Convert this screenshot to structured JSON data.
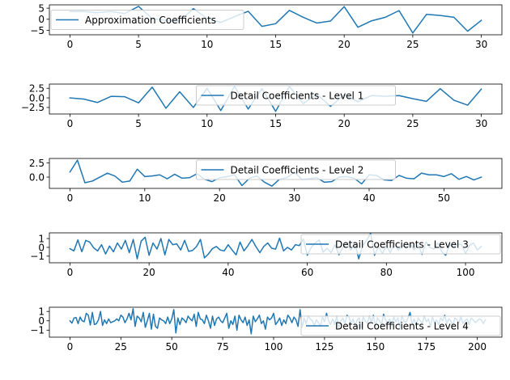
{
  "chart_data": [
    {
      "type": "line",
      "series": [
        {
          "name": "Approximation Coefficients",
          "color": "#1f77b4",
          "values": [
            3.5,
            3.5,
            3.0,
            3.5,
            2.6,
            5.8,
            0.3,
            -0.5,
            -0.9,
            4.8,
            0.3,
            -1.4,
            1.2,
            3.6,
            -3.2,
            -2.0,
            4.0,
            0.9,
            -1.7,
            -0.8,
            5.7,
            -3.6,
            -0.7,
            0.9,
            3.9,
            -6.2,
            2.2,
            1.7,
            0.9,
            -5.4,
            -0.5
          ]
        }
      ],
      "xlim": [
        -1.5,
        31.5
      ],
      "ylim": [
        -7.0,
        6.5
      ],
      "xticks": [
        0,
        5,
        10,
        15,
        20,
        25,
        30
      ],
      "yticks": [
        -5,
        0,
        5
      ],
      "legend_loc": "middle-left",
      "grid": false
    },
    {
      "type": "line",
      "series": [
        {
          "name": "Detail Coefficients - Level 1",
          "color": "#1f77b4",
          "values": [
            0.0,
            -0.3,
            -1.2,
            0.4,
            0.3,
            -1.3,
            2.8,
            -2.7,
            1.6,
            -2.5,
            2.5,
            -3.3,
            3.0,
            -2.9,
            2.4,
            -3.5,
            3.0,
            -1.5,
            1.0,
            -2.2,
            0.8,
            -1.0,
            0.6,
            0.4,
            0.6,
            -0.2,
            -0.9,
            2.4,
            -0.6,
            -1.9,
            2.3
          ]
        }
      ],
      "xlim": [
        -1.5,
        31.5
      ],
      "ylim": [
        -4.2,
        3.6
      ],
      "xticks": [
        0,
        5,
        10,
        15,
        20,
        25,
        30
      ],
      "yticks": [
        -2.5,
        0.0,
        2.5
      ],
      "legend_loc": "upper-center",
      "grid": false
    },
    {
      "type": "line",
      "series": [
        {
          "name": "Detail Coefficients - Level 2",
          "color": "#1f77b4",
          "values": [
            0.9,
            3.0,
            -1.0,
            -0.7,
            0.0,
            0.7,
            0.2,
            -0.9,
            -0.7,
            1.4,
            0.1,
            0.2,
            0.4,
            -0.3,
            0.5,
            -0.2,
            -0.1,
            0.6,
            -0.4,
            -0.8,
            -0.1,
            0.1,
            0.4,
            -1.5,
            -0.2,
            0.2,
            -0.9,
            -1.6,
            -0.4,
            -0.1,
            0.9,
            -0.4,
            -0.3,
            -0.1,
            -0.9,
            -0.8,
            0.0,
            0.1,
            -0.2,
            -1.2,
            0.4,
            0.3,
            -0.5,
            -0.6,
            0.3,
            -0.2,
            -0.3,
            0.7,
            0.4,
            0.4,
            0.1,
            0.6,
            -0.4,
            0.1,
            -0.5,
            0.0
          ]
        }
      ],
      "xlim": [
        -2.75,
        57.75
      ],
      "ylim": [
        -2.0,
        3.3
      ],
      "xticks": [
        0,
        10,
        20,
        30,
        40,
        50
      ],
      "yticks": [
        0.0,
        2.5
      ],
      "legend_loc": "upper-center",
      "grid": false
    },
    {
      "type": "line",
      "series": [
        {
          "name": "Detail Coefficients - Level 3",
          "color": "#1f77b4",
          "values": [
            -0.15,
            -0.4,
            0.85,
            -0.5,
            0.8,
            0.6,
            -0.05,
            -0.4,
            0.3,
            -0.75,
            0.15,
            -0.5,
            0.5,
            -0.2,
            0.8,
            -0.6,
            0.9,
            -1.3,
            0.7,
            1.15,
            -0.9,
            0.5,
            -0.2,
            1.0,
            -0.85,
            0.9,
            0.3,
            0.4,
            -0.3,
            0.8,
            -0.45,
            -0.35,
            0.1,
            0.9,
            -1.2,
            -0.75,
            -0.15,
            0.1,
            -0.3,
            -0.4,
            0.3,
            -0.3,
            -0.85,
            0.6,
            -0.4,
            0.2,
            0.9,
            0.1,
            -0.6,
            0.1,
            0.5,
            -0.1,
            -0.2,
            1.05,
            -0.4,
            0.0,
            -0.3,
            0.3,
            0.2,
            0.95,
            -0.9,
            0.0,
            0.5,
            0.85,
            -0.55,
            -0.1,
            -0.6,
            0.3,
            -0.85,
            0.0,
            0.5,
            -0.3,
            0.6,
            -1.3,
            0.2,
            0.8,
            1.6,
            -0.9,
            0.1,
            -0.7,
            0.2,
            -0.6,
            0.5,
            -0.3,
            0.2,
            -0.1,
            0.4,
            -0.3,
            0.3,
            -0.8,
            0.6,
            0.0,
            -0.2,
            0.5,
            -0.5,
            -0.9,
            0.3,
            0.0,
            0.4,
            0.3,
            -0.7,
            0.2,
            0.5,
            -0.3,
            0.1
          ]
        }
      ],
      "xlim": [
        -5.2,
        109.2
      ],
      "ylim": [
        -1.75,
        1.65
      ],
      "xticks": [
        0,
        20,
        40,
        60,
        80,
        100
      ],
      "yticks": [
        -1,
        0,
        1
      ],
      "legend_loc": "upper-right",
      "grid": false
    },
    {
      "type": "line",
      "series": [
        {
          "name": "Detail Coefficients - Level 4",
          "color": "#1f77b4",
          "values": [
            0.0,
            -0.25,
            0.3,
            0.35,
            -0.3,
            0.4,
            0.0,
            -0.1,
            0.8,
            0.6,
            -0.45,
            0.9,
            -0.4,
            -0.3,
            0.1,
            1.0,
            -0.5,
            0.1,
            -0.3,
            0.2,
            -0.2,
            -0.1,
            0.0,
            0.2,
            0.0,
            0.6,
            0.4,
            -0.2,
            0.2,
            0.8,
            0.1,
            1.3,
            -0.6,
            0.5,
            0.3,
            -0.1,
            0.9,
            -0.7,
            0.0,
            0.8,
            -0.9,
            0.7,
            -0.6,
            -0.8,
            0.3,
            0.1,
            0.0,
            -0.3,
            0.4,
            -0.3,
            0.2,
            1.2,
            -1.3,
            0.3,
            -0.4,
            0.3,
            0.1,
            -0.2,
            0.5,
            0.2,
            0.0,
            0.7,
            -0.6,
            0.9,
            0.2,
            0.1,
            -0.3,
            0.6,
            0.0,
            -0.8,
            0.5,
            -0.5,
            0.2,
            0.4,
            0.0,
            -0.2,
            0.3,
            0.8,
            -0.8,
            0.0,
            -0.4,
            0.5,
            -1.0,
            0.6,
            0.1,
            -0.2,
            0.4,
            -0.5,
            0.1,
            -1.4,
            0.5,
            -0.1,
            0.2,
            0.6,
            -0.3,
            0.0,
            -0.9,
            0.4,
            0.1,
            0.3,
            0.8,
            -0.4,
            -0.1,
            0.3,
            -0.5,
            0.1,
            -0.3,
            0.6,
            0.3,
            -0.2,
            0.4,
            0.1,
            -0.6,
            1.2,
            -0.7,
            0.3,
            -0.3,
            0.5,
            0.2,
            0.0,
            -0.5,
            0.1,
            -0.2,
            -0.6,
            0.4,
            -0.1,
            0.8,
            0.0,
            -0.4,
            0.2,
            -0.4,
            0.5,
            -0.8,
            0.0,
            0.3,
            -0.3,
            0.6,
            0.4,
            -0.3,
            0.2,
            -0.6,
            0.1,
            0.3,
            -0.8,
            0.4,
            0.0,
            -0.3,
            0.5,
            -0.2,
            0.6,
            -0.6,
            0.3,
            0.0,
            -0.4,
            0.7,
            0.1,
            -0.3,
            0.2,
            -0.5,
            0.4,
            -0.1,
            0.3,
            -0.7,
            0.5,
            0.0,
            -0.2,
            0.3,
            0.9,
            -0.4,
            0.2,
            -0.5,
            0.3,
            0.0,
            -0.3,
            0.5,
            -0.1,
            0.2,
            -0.6,
            0.4,
            -0.2,
            0.1,
            -0.4,
            0.3,
            0.0,
            0.6,
            -0.3,
            0.2,
            0.0,
            -0.5,
            0.3,
            0.1,
            -0.2,
            0.4,
            -0.3,
            0.0,
            0.2,
            -0.4,
            0.3,
            0.1,
            -0.2,
            0.0,
            0.2,
            0.1,
            -0.3,
            0.1
          ]
        }
      ],
      "xlim": [
        -10.1,
        212.1
      ],
      "ylim": [
        -1.75,
        1.45
      ],
      "xticks": [
        0,
        25,
        50,
        75,
        100,
        125,
        150,
        175,
        200
      ],
      "yticks": [
        -1,
        0,
        1
      ],
      "legend_loc": "lower-right",
      "grid": false
    }
  ]
}
